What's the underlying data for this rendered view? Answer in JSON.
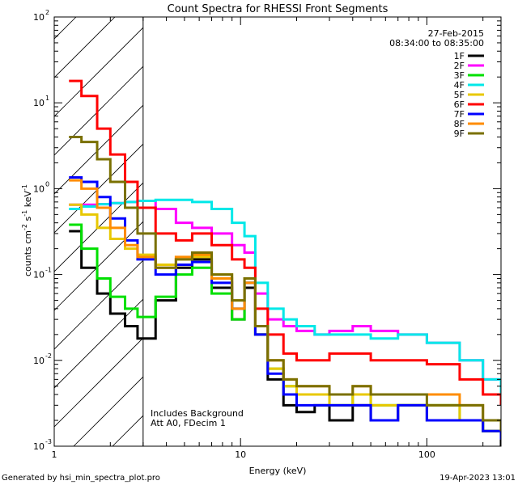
{
  "chart_data": {
    "type": "line",
    "title": "Count Spectra for RHESSI Front Segments",
    "xlabel": "Energy (keV)",
    "ylabel_main": "counts cm",
    "ylabel_exp1": "-2",
    "ylabel_mid": " s",
    "ylabel_exp2": "-1",
    "ylabel_mid2": " keV",
    "ylabel_exp3": "-1",
    "x_scale": "log",
    "y_scale": "log",
    "xlim": [
      1,
      250
    ],
    "ylim": [
      0.001,
      100
    ],
    "x_ticks": [
      {
        "value": 1,
        "label": "1"
      },
      {
        "value": 10,
        "label": "10"
      },
      {
        "value": 100,
        "label": "100"
      }
    ],
    "y_ticks": [
      {
        "value": 0.001,
        "base": "10",
        "exp": "-3"
      },
      {
        "value": 0.01,
        "base": "10",
        "exp": "-2"
      },
      {
        "value": 0.1,
        "base": "10",
        "exp": "-1"
      },
      {
        "value": 1,
        "base": "10",
        "exp": "0"
      },
      {
        "value": 10,
        "base": "10",
        "exp": "1"
      },
      {
        "value": 100,
        "base": "10",
        "exp": "2"
      }
    ],
    "date": "27-Feb-2015",
    "time_range": "08:34:00 to 08:35:00",
    "hatched_region": [
      1,
      3
    ],
    "annotation_lines": [
      "Includes Background",
      "Att A0, FDecim 1"
    ],
    "series": [
      {
        "name": "1F",
        "color": "#000000",
        "points": [
          [
            1.2,
            0.32
          ],
          [
            1.4,
            0.12
          ],
          [
            1.7,
            0.06
          ],
          [
            2.0,
            0.035
          ],
          [
            2.4,
            0.025
          ],
          [
            2.8,
            0.018
          ],
          [
            3.5,
            0.05
          ],
          [
            4.5,
            0.12
          ],
          [
            5.5,
            0.15
          ],
          [
            7,
            0.07
          ],
          [
            9,
            0.03
          ],
          [
            10.5,
            0.07
          ],
          [
            12,
            0.02
          ],
          [
            14,
            0.006
          ],
          [
            17,
            0.003
          ],
          [
            20,
            0.0025
          ],
          [
            25,
            0.003
          ],
          [
            30,
            0.002
          ],
          [
            40,
            0.003
          ],
          [
            50,
            0.002
          ],
          [
            70,
            0.003
          ],
          [
            100,
            0.002
          ],
          [
            150,
            0.002
          ],
          [
            200,
            0.0015
          ],
          [
            250,
            0.001
          ]
        ]
      },
      {
        "name": "2F",
        "color": "#ff00ff",
        "points": [
          [
            1.2,
            0.65
          ],
          [
            1.4,
            0.65
          ],
          [
            1.7,
            0.66
          ],
          [
            2.0,
            0.68
          ],
          [
            2.4,
            0.7
          ],
          [
            2.8,
            0.72
          ],
          [
            3.5,
            0.58
          ],
          [
            4.5,
            0.4
          ],
          [
            5.5,
            0.35
          ],
          [
            7,
            0.3
          ],
          [
            9,
            0.22
          ],
          [
            10.5,
            0.18
          ],
          [
            12,
            0.06
          ],
          [
            14,
            0.03
          ],
          [
            17,
            0.025
          ],
          [
            20,
            0.022
          ],
          [
            25,
            0.02
          ],
          [
            30,
            0.022
          ],
          [
            40,
            0.025
          ],
          [
            50,
            0.022
          ],
          [
            70,
            0.02
          ],
          [
            100,
            0.016
          ],
          [
            150,
            0.01
          ],
          [
            200,
            0.006
          ],
          [
            250,
            0.004
          ]
        ]
      },
      {
        "name": "3F",
        "color": "#00e000",
        "points": [
          [
            1.2,
            0.38
          ],
          [
            1.4,
            0.2
          ],
          [
            1.7,
            0.09
          ],
          [
            2.0,
            0.055
          ],
          [
            2.4,
            0.04
          ],
          [
            2.8,
            0.032
          ],
          [
            3.5,
            0.055
          ],
          [
            4.5,
            0.1
          ],
          [
            5.5,
            0.12
          ],
          [
            7,
            0.06
          ],
          [
            9,
            0.03
          ],
          [
            10.5,
            0.08
          ],
          [
            12,
            0.02
          ],
          [
            14,
            0.008
          ],
          [
            17,
            0.005
          ],
          [
            20,
            0.004
          ],
          [
            25,
            0.004
          ],
          [
            30,
            0.003
          ],
          [
            40,
            0.004
          ],
          [
            50,
            0.003
          ],
          [
            70,
            0.003
          ],
          [
            100,
            0.003
          ],
          [
            150,
            0.002
          ],
          [
            200,
            0.0015
          ],
          [
            250,
            0.0012
          ]
        ]
      },
      {
        "name": "4F",
        "color": "#00e8e8",
        "points": [
          [
            1.2,
            0.58
          ],
          [
            1.4,
            0.62
          ],
          [
            1.7,
            0.66
          ],
          [
            2.0,
            0.68
          ],
          [
            2.4,
            0.7
          ],
          [
            2.8,
            0.72
          ],
          [
            3.5,
            0.74
          ],
          [
            4.5,
            0.74
          ],
          [
            5.5,
            0.7
          ],
          [
            7,
            0.58
          ],
          [
            9,
            0.4
          ],
          [
            10.5,
            0.28
          ],
          [
            12,
            0.08
          ],
          [
            14,
            0.04
          ],
          [
            17,
            0.03
          ],
          [
            20,
            0.025
          ],
          [
            25,
            0.02
          ],
          [
            30,
            0.02
          ],
          [
            40,
            0.02
          ],
          [
            50,
            0.018
          ],
          [
            70,
            0.02
          ],
          [
            100,
            0.016
          ],
          [
            150,
            0.01
          ],
          [
            200,
            0.006
          ],
          [
            250,
            0.004
          ]
        ]
      },
      {
        "name": "5F",
        "color": "#e8c800",
        "points": [
          [
            1.2,
            0.65
          ],
          [
            1.4,
            0.5
          ],
          [
            1.7,
            0.35
          ],
          [
            2.0,
            0.26
          ],
          [
            2.4,
            0.2
          ],
          [
            2.8,
            0.17
          ],
          [
            3.5,
            0.13
          ],
          [
            4.5,
            0.15
          ],
          [
            5.5,
            0.16
          ],
          [
            7,
            0.1
          ],
          [
            9,
            0.05
          ],
          [
            10.5,
            0.09
          ],
          [
            12,
            0.02
          ],
          [
            14,
            0.008
          ],
          [
            17,
            0.005
          ],
          [
            20,
            0.004
          ],
          [
            25,
            0.004
          ],
          [
            30,
            0.003
          ],
          [
            40,
            0.004
          ],
          [
            50,
            0.003
          ],
          [
            70,
            0.003
          ],
          [
            100,
            0.003
          ],
          [
            150,
            0.002
          ],
          [
            200,
            0.0015
          ],
          [
            250,
            0.0012
          ]
        ]
      },
      {
        "name": "6F",
        "color": "#ff0000",
        "points": [
          [
            1.2,
            18
          ],
          [
            1.4,
            12
          ],
          [
            1.7,
            5
          ],
          [
            2.0,
            2.5
          ],
          [
            2.4,
            1.2
          ],
          [
            2.8,
            0.6
          ],
          [
            3.5,
            0.3
          ],
          [
            4.5,
            0.25
          ],
          [
            5.5,
            0.3
          ],
          [
            7,
            0.22
          ],
          [
            9,
            0.15
          ],
          [
            10.5,
            0.12
          ],
          [
            12,
            0.04
          ],
          [
            14,
            0.02
          ],
          [
            17,
            0.012
          ],
          [
            20,
            0.01
          ],
          [
            25,
            0.01
          ],
          [
            30,
            0.012
          ],
          [
            40,
            0.012
          ],
          [
            50,
            0.01
          ],
          [
            70,
            0.01
          ],
          [
            100,
            0.009
          ],
          [
            150,
            0.006
          ],
          [
            200,
            0.004
          ],
          [
            250,
            0.003
          ]
        ]
      },
      {
        "name": "7F",
        "color": "#0000ff",
        "points": [
          [
            1.2,
            1.35
          ],
          [
            1.4,
            1.2
          ],
          [
            1.7,
            0.8
          ],
          [
            2.0,
            0.45
          ],
          [
            2.4,
            0.25
          ],
          [
            2.8,
            0.15
          ],
          [
            3.5,
            0.1
          ],
          [
            4.5,
            0.13
          ],
          [
            5.5,
            0.14
          ],
          [
            7,
            0.08
          ],
          [
            9,
            0.04
          ],
          [
            10.5,
            0.08
          ],
          [
            12,
            0.02
          ],
          [
            14,
            0.007
          ],
          [
            17,
            0.004
          ],
          [
            20,
            0.003
          ],
          [
            25,
            0.003
          ],
          [
            30,
            0.003
          ],
          [
            40,
            0.003
          ],
          [
            50,
            0.002
          ],
          [
            70,
            0.003
          ],
          [
            100,
            0.002
          ],
          [
            150,
            0.002
          ],
          [
            200,
            0.0015
          ],
          [
            250,
            0.0012
          ]
        ]
      },
      {
        "name": "8F",
        "color": "#ff8c00",
        "points": [
          [
            1.2,
            1.25
          ],
          [
            1.4,
            1.0
          ],
          [
            1.7,
            0.6
          ],
          [
            2.0,
            0.35
          ],
          [
            2.4,
            0.22
          ],
          [
            2.8,
            0.16
          ],
          [
            3.5,
            0.12
          ],
          [
            4.5,
            0.16
          ],
          [
            5.5,
            0.17
          ],
          [
            7,
            0.09
          ],
          [
            9,
            0.04
          ],
          [
            10.5,
            0.08
          ],
          [
            12,
            0.025
          ],
          [
            14,
            0.01
          ],
          [
            17,
            0.006
          ],
          [
            20,
            0.005
          ],
          [
            25,
            0.005
          ],
          [
            30,
            0.004
          ],
          [
            40,
            0.005
          ],
          [
            50,
            0.004
          ],
          [
            70,
            0.004
          ],
          [
            100,
            0.004
          ],
          [
            150,
            0.003
          ],
          [
            200,
            0.002
          ],
          [
            250,
            0.0015
          ]
        ]
      },
      {
        "name": "9F",
        "color": "#7a7000",
        "points": [
          [
            1.2,
            4.0
          ],
          [
            1.4,
            3.5
          ],
          [
            1.7,
            2.2
          ],
          [
            2.0,
            1.2
          ],
          [
            2.4,
            0.6
          ],
          [
            2.8,
            0.3
          ],
          [
            3.5,
            0.12
          ],
          [
            4.5,
            0.15
          ],
          [
            5.5,
            0.18
          ],
          [
            7,
            0.1
          ],
          [
            9,
            0.05
          ],
          [
            10.5,
            0.09
          ],
          [
            12,
            0.025
          ],
          [
            14,
            0.01
          ],
          [
            17,
            0.006
          ],
          [
            20,
            0.005
          ],
          [
            25,
            0.005
          ],
          [
            30,
            0.004
          ],
          [
            40,
            0.005
          ],
          [
            50,
            0.004
          ],
          [
            70,
            0.004
          ],
          [
            100,
            0.003
          ],
          [
            150,
            0.003
          ],
          [
            200,
            0.002
          ],
          [
            250,
            0.0015
          ]
        ]
      }
    ]
  },
  "footer": {
    "generated_by": "Generated by hsi_min_spectra_plot.pro",
    "timestamp": "19-Apr-2023 13:01"
  }
}
